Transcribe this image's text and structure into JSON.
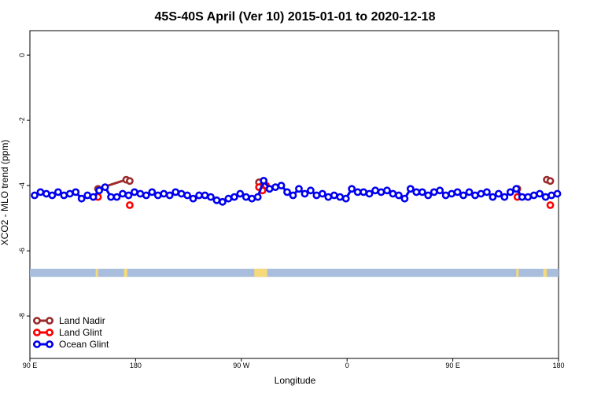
{
  "chart_data": {
    "type": "line",
    "title": "45S-40S April (Ver 10)   2015-01-01 to 2020-12-18",
    "xlabel": "Longitude",
    "ylabel": "XCO2 - MLO trend (ppm)",
    "xlim": [
      90,
      540
    ],
    "ylim": [
      -9.3,
      0.75
    ],
    "x_ticks": [
      {
        "value": 90,
        "label": "90 E"
      },
      {
        "value": 180,
        "label": "180"
      },
      {
        "value": 270,
        "label": "90 W"
      },
      {
        "value": 360,
        "label": "0"
      },
      {
        "value": 450,
        "label": "90 E"
      },
      {
        "value": 540,
        "label": "180"
      }
    ],
    "y_ticks": [
      {
        "value": 0,
        "label": "0"
      },
      {
        "value": -2,
        "label": "-2"
      },
      {
        "value": -4,
        "label": "-4"
      },
      {
        "value": -6,
        "label": "-6"
      },
      {
        "value": -8,
        "label": "-8"
      }
    ],
    "grid": false,
    "legend_position": "bottom-left",
    "land_band": {
      "y_range": [
        -6.55,
        -6.8
      ],
      "ocean_color": "#a8bedc",
      "land_color": "#f5d97a",
      "land_segments": [
        [
          146,
          148
        ],
        [
          170,
          173
        ],
        [
          281,
          292
        ],
        [
          504,
          506
        ],
        [
          527,
          530
        ]
      ]
    },
    "series": [
      {
        "name": "Land Nadir",
        "color": "#9b2c2c",
        "segments": [
          {
            "x": [
              148,
              172,
              175
            ],
            "y": [
              -4.1,
              -3.82,
              -3.86
            ]
          },
          {
            "x": [
              285,
              288
            ],
            "y": [
              -3.9,
              -4.0
            ]
          },
          {
            "x": [
              505
            ],
            "y": [
              -4.1
            ]
          },
          {
            "x": [
              530,
              533
            ],
            "y": [
              -3.82,
              -3.86
            ]
          }
        ]
      },
      {
        "name": "Land Glint",
        "color": "#ff0000",
        "segments": [
          {
            "x": [
              148
            ],
            "y": [
              -4.35
            ]
          },
          {
            "x": [
              175
            ],
            "y": [
              -4.6
            ]
          },
          {
            "x": [
              285,
              288,
              291
            ],
            "y": [
              -4.05,
              -4.15,
              -4.0
            ]
          },
          {
            "x": [
              505
            ],
            "y": [
              -4.35
            ]
          },
          {
            "x": [
              533
            ],
            "y": [
              -4.6
            ]
          }
        ]
      },
      {
        "name": "Ocean Glint",
        "color": "#0000ee",
        "segments": [
          {
            "x": [
              94,
              99,
              104,
              109,
              114,
              119,
              124,
              129,
              134,
              139,
              144,
              149,
              154,
              159,
              164,
              169,
              174,
              179,
              184,
              189,
              194,
              199,
              204,
              209,
              214,
              219,
              224,
              229,
              234,
              239,
              244,
              249,
              254,
              259,
              264,
              269,
              274,
              279,
              284,
              289,
              294,
              299,
              304,
              309,
              314,
              319,
              324,
              329,
              334,
              339,
              344,
              349,
              354,
              359,
              364,
              369,
              374,
              379,
              384,
              389,
              394,
              399,
              404,
              409,
              414,
              419,
              424,
              429,
              434,
              439,
              444,
              449,
              454,
              459,
              464,
              469,
              474,
              479,
              484,
              489,
              494,
              499,
              504,
              509,
              514,
              519,
              524,
              529,
              534,
              539
            ],
            "y": [
              -4.3,
              -4.2,
              -4.25,
              -4.3,
              -4.2,
              -4.3,
              -4.25,
              -4.2,
              -4.4,
              -4.3,
              -4.35,
              -4.15,
              -4.05,
              -4.35,
              -4.35,
              -4.25,
              -4.3,
              -4.2,
              -4.25,
              -4.3,
              -4.2,
              -4.3,
              -4.25,
              -4.3,
              -4.2,
              -4.25,
              -4.3,
              -4.4,
              -4.3,
              -4.3,
              -4.35,
              -4.45,
              -4.5,
              -4.4,
              -4.35,
              -4.25,
              -4.35,
              -4.4,
              -4.35,
              -3.85,
              -4.1,
              -4.05,
              -4.0,
              -4.2,
              -4.3,
              -4.1,
              -4.25,
              -4.15,
              -4.3,
              -4.25,
              -4.35,
              -4.3,
              -4.35,
              -4.4,
              -4.1,
              -4.2,
              -4.2,
              -4.25,
              -4.15,
              -4.2,
              -4.15,
              -4.25,
              -4.3,
              -4.4,
              -4.1,
              -4.2,
              -4.2,
              -4.3,
              -4.2,
              -4.15,
              -4.3,
              -4.25,
              -4.2,
              -4.3,
              -4.2,
              -4.3,
              -4.25,
              -4.2,
              -4.35,
              -4.25,
              -4.35,
              -4.2,
              -4.1,
              -4.35,
              -4.35,
              -4.3,
              -4.25,
              -4.35,
              -4.3,
              -4.25
            ]
          }
        ]
      }
    ]
  }
}
